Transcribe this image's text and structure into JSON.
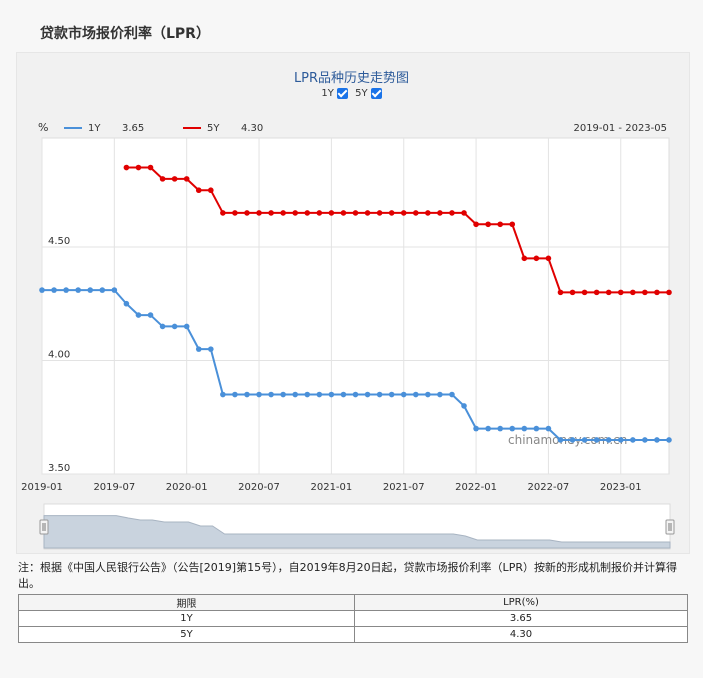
{
  "page": {
    "title": "贷款市场报价利率（LPR）"
  },
  "toggles": [
    {
      "label": "1Y",
      "checked": true
    },
    {
      "label": "5Y",
      "checked": true
    }
  ],
  "chart_data": {
    "type": "line",
    "title": "LPR品种历史走势图",
    "unit": "%",
    "range_label": "2019-01 - 2023-05",
    "watermark": "chinamoney.com.cn",
    "ylim": [
      3.5,
      4.98
    ],
    "yticks": [
      "3.50",
      "4.00",
      "4.50"
    ],
    "xticks": [
      "2019-01",
      "2019-07",
      "2020-01",
      "2020-07",
      "2021-01",
      "2021-07",
      "2022-01",
      "2022-07",
      "2023-01"
    ],
    "grid": true,
    "legend_position": "top-left",
    "series": [
      {
        "name": "1Y",
        "current": "3.65",
        "color": "#4a90d9",
        "x": [
          "2019-01",
          "2019-02",
          "2019-03",
          "2019-04",
          "2019-05",
          "2019-06",
          "2019-07",
          "2019-08",
          "2019-09",
          "2019-10",
          "2019-11",
          "2019-12",
          "2020-01",
          "2020-02",
          "2020-03",
          "2020-04",
          "2020-05",
          "2020-06",
          "2020-07",
          "2020-08",
          "2020-09",
          "2020-10",
          "2020-11",
          "2020-12",
          "2021-01",
          "2021-02",
          "2021-03",
          "2021-04",
          "2021-05",
          "2021-06",
          "2021-07",
          "2021-08",
          "2021-09",
          "2021-10",
          "2021-11",
          "2021-12",
          "2022-01",
          "2022-02",
          "2022-03",
          "2022-04",
          "2022-05",
          "2022-06",
          "2022-07",
          "2022-08",
          "2022-09",
          "2022-10",
          "2022-11",
          "2022-12",
          "2023-01",
          "2023-02",
          "2023-03",
          "2023-04",
          "2023-05"
        ],
        "values": [
          4.31,
          4.31,
          4.31,
          4.31,
          4.31,
          4.31,
          4.31,
          4.25,
          4.2,
          4.2,
          4.15,
          4.15,
          4.15,
          4.05,
          4.05,
          3.85,
          3.85,
          3.85,
          3.85,
          3.85,
          3.85,
          3.85,
          3.85,
          3.85,
          3.85,
          3.85,
          3.85,
          3.85,
          3.85,
          3.85,
          3.85,
          3.85,
          3.85,
          3.85,
          3.85,
          3.8,
          3.7,
          3.7,
          3.7,
          3.7,
          3.7,
          3.7,
          3.7,
          3.65,
          3.65,
          3.65,
          3.65,
          3.65,
          3.65,
          3.65,
          3.65,
          3.65,
          3.65
        ]
      },
      {
        "name": "5Y",
        "current": "4.30",
        "color": "#e00000",
        "x": [
          "2019-08",
          "2019-09",
          "2019-10",
          "2019-11",
          "2019-12",
          "2020-01",
          "2020-02",
          "2020-03",
          "2020-04",
          "2020-05",
          "2020-06",
          "2020-07",
          "2020-08",
          "2020-09",
          "2020-10",
          "2020-11",
          "2020-12",
          "2021-01",
          "2021-02",
          "2021-03",
          "2021-04",
          "2021-05",
          "2021-06",
          "2021-07",
          "2021-08",
          "2021-09",
          "2021-10",
          "2021-11",
          "2021-12",
          "2022-01",
          "2022-02",
          "2022-03",
          "2022-04",
          "2022-05",
          "2022-06",
          "2022-07",
          "2022-08",
          "2022-09",
          "2022-10",
          "2022-11",
          "2022-12",
          "2023-01",
          "2023-02",
          "2023-03",
          "2023-04",
          "2023-05"
        ],
        "values": [
          4.85,
          4.85,
          4.85,
          4.8,
          4.8,
          4.8,
          4.75,
          4.75,
          4.65,
          4.65,
          4.65,
          4.65,
          4.65,
          4.65,
          4.65,
          4.65,
          4.65,
          4.65,
          4.65,
          4.65,
          4.65,
          4.65,
          4.65,
          4.65,
          4.65,
          4.65,
          4.65,
          4.65,
          4.65,
          4.6,
          4.6,
          4.6,
          4.6,
          4.45,
          4.45,
          4.45,
          4.3,
          4.3,
          4.3,
          4.3,
          4.3,
          4.3,
          4.3,
          4.3,
          4.3,
          4.3
        ]
      }
    ]
  },
  "note": "注：根据《中国人民银行公告》（公告[2019]第15号），自2019年8月20日起，贷款市场报价利率（LPR）按新的形成机制报价并计算得出。",
  "table": {
    "headers": [
      "期限",
      "LPR(%)"
    ],
    "rows": [
      [
        "1Y",
        "3.65"
      ],
      [
        "5Y",
        "4.30"
      ]
    ]
  }
}
